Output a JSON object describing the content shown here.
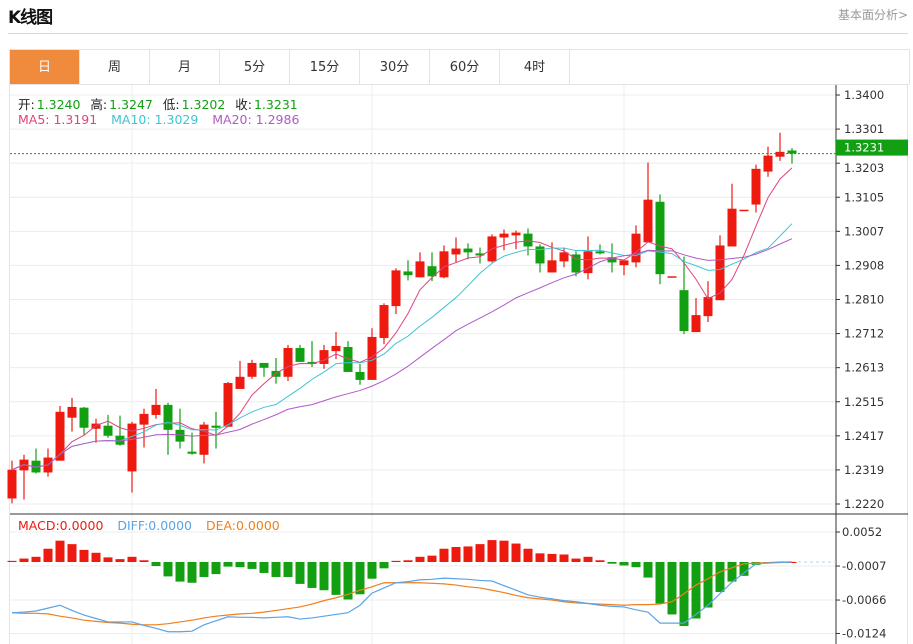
{
  "header": {
    "title": "K线图",
    "more_link": "基本面分析>"
  },
  "tabs": [
    {
      "label": "日",
      "active": true
    },
    {
      "label": "周"
    },
    {
      "label": "月"
    },
    {
      "label": "5分"
    },
    {
      "label": "15分"
    },
    {
      "label": "30分"
    },
    {
      "label": "60分"
    },
    {
      "label": "4时"
    }
  ],
  "ohlc_info": {
    "open_label": "开:",
    "open": "1.3240",
    "high_label": "高:",
    "high": "1.3247",
    "low_label": "低:",
    "low": "1.3202",
    "close_label": "收:",
    "close": "1.3231"
  },
  "ma_info": {
    "ma5": "MA5: 1.3191",
    "ma10": "MA10: 1.3029",
    "ma20": "MA20: 1.2986"
  },
  "macd_info": {
    "macd": "MACD:0.0000",
    "diff": "DIFF:0.0000",
    "dea": "DEA:0.0000"
  },
  "current_price": "1.3231",
  "colors": {
    "up": "#ee1a10",
    "down": "#12a012",
    "ma5": "#e0447f",
    "ma10": "#3ec5d3",
    "ma20": "#b05ac8",
    "diff": "#5ba4e6",
    "dea": "#f07f1d",
    "active_tab": "#f08a3c",
    "price_tag": "#12a012"
  },
  "chart_data": [
    {
      "type": "candlestick",
      "ylim": [
        1.222,
        1.34
      ],
      "y_ticks": [
        "1.3400",
        "1.3301",
        "1.3203",
        "1.3105",
        "1.3007",
        "1.2908",
        "1.2810",
        "1.2712",
        "1.2613",
        "1.2515",
        "1.2417",
        "1.2319",
        "1.2220"
      ],
      "grid": true,
      "candles": [
        [
          1.2236,
          1.2345,
          1.2222,
          1.2319
        ],
        [
          1.2317,
          1.2362,
          1.2233,
          1.2348
        ],
        [
          1.2345,
          1.238,
          1.2308,
          1.2311
        ],
        [
          1.2311,
          1.238,
          1.2299,
          1.2354
        ],
        [
          1.2345,
          1.2503,
          1.2345,
          1.2486
        ],
        [
          1.2469,
          1.2526,
          1.2429,
          1.25
        ],
        [
          1.2498,
          1.25,
          1.242,
          1.244
        ],
        [
          1.2437,
          1.2466,
          1.2397,
          1.2452
        ],
        [
          1.2446,
          1.2477,
          1.2411,
          1.2417
        ],
        [
          1.2417,
          1.2475,
          1.2388,
          1.2391
        ],
        [
          1.2314,
          1.2457,
          1.2253,
          1.2452
        ],
        [
          1.2449,
          1.2495,
          1.2383,
          1.248
        ],
        [
          1.2477,
          1.2552,
          1.2466,
          1.2506
        ],
        [
          1.2506,
          1.2512,
          1.2362,
          1.2434
        ],
        [
          1.2434,
          1.2495,
          1.238,
          1.24
        ],
        [
          1.2371,
          1.2426,
          1.2362,
          1.2365
        ],
        [
          1.2362,
          1.2457,
          1.2337,
          1.2449
        ],
        [
          1.2446,
          1.2486,
          1.238,
          1.244
        ],
        [
          1.2443,
          1.2572,
          1.2443,
          1.2569
        ],
        [
          1.2552,
          1.2633,
          1.2552,
          1.2587
        ],
        [
          1.2587,
          1.2636,
          1.2581,
          1.2627
        ],
        [
          1.2627,
          1.2627,
          1.2587,
          1.2613
        ],
        [
          1.2604,
          1.2641,
          1.2567,
          1.2587
        ],
        [
          1.2587,
          1.2679,
          1.2575,
          1.267
        ],
        [
          1.267,
          1.2679,
          1.263,
          1.263
        ],
        [
          1.263,
          1.269,
          1.2615,
          1.2624
        ],
        [
          1.2624,
          1.2679,
          1.261,
          1.2664
        ],
        [
          1.2661,
          1.2716,
          1.2638,
          1.2676
        ],
        [
          1.2673,
          1.269,
          1.2601,
          1.2601
        ],
        [
          1.2601,
          1.2624,
          1.2564,
          1.2578
        ],
        [
          1.2578,
          1.2727,
          1.2578,
          1.2702
        ],
        [
          1.2699,
          1.2799,
          1.2681,
          1.2794
        ],
        [
          1.2791,
          1.29,
          1.2768,
          1.2894
        ],
        [
          1.2891,
          1.2923,
          1.2865,
          1.288
        ],
        [
          1.2874,
          1.2946,
          1.2874,
          1.292
        ],
        [
          1.2906,
          1.2946,
          1.2863,
          1.2877
        ],
        [
          1.2874,
          1.2966,
          1.2871,
          1.2949
        ],
        [
          1.294,
          1.2989,
          1.2917,
          1.2957
        ],
        [
          1.2957,
          1.2972,
          1.2926,
          1.2946
        ],
        [
          1.2943,
          1.296,
          1.2914,
          1.2937
        ],
        [
          1.292,
          1.2998,
          1.2917,
          1.2992
        ],
        [
          1.2989,
          1.3012,
          1.2952,
          1.3
        ],
        [
          1.2995,
          1.3009,
          1.2955,
          1.3003
        ],
        [
          1.3,
          1.3015,
          1.2937,
          1.2963
        ],
        [
          1.2963,
          1.2969,
          1.2888,
          1.2914
        ],
        [
          1.2888,
          1.2975,
          1.2888,
          1.2923
        ],
        [
          1.292,
          1.296,
          1.2903,
          1.2946
        ],
        [
          1.294,
          1.2949,
          1.2877,
          1.2888
        ],
        [
          1.2886,
          1.2992,
          1.2868,
          1.2949
        ],
        [
          1.2949,
          1.2969,
          1.294,
          1.2943
        ],
        [
          1.2932,
          1.2972,
          1.2888,
          1.2917
        ],
        [
          1.2909,
          1.2923,
          1.288,
          1.2923
        ],
        [
          1.2917,
          1.3024,
          1.2903,
          1.3
        ],
        [
          1.2975,
          1.3205,
          1.2975,
          1.3098
        ],
        [
          1.3092,
          1.3113,
          1.2854,
          1.2883
        ],
        [
          1.2877,
          1.2877,
          1.2877,
          1.2877
        ],
        [
          1.2837,
          1.2934,
          1.271,
          1.2719
        ],
        [
          1.2716,
          1.2814,
          1.2716,
          1.2765
        ],
        [
          1.2762,
          1.2863,
          1.2745,
          1.2817
        ],
        [
          1.2808,
          1.2995,
          1.2808,
          1.2966
        ],
        [
          1.2963,
          1.3144,
          1.2963,
          1.3072
        ],
        [
          1.3069,
          1.3069,
          1.3069,
          1.3069
        ],
        [
          1.3084,
          1.3199,
          1.3061,
          1.3187
        ],
        [
          1.3179,
          1.3251,
          1.3164,
          1.3225
        ],
        [
          1.3222,
          1.3291,
          1.321,
          1.3236
        ],
        [
          1.324,
          1.3247,
          1.3202,
          1.3231
        ]
      ],
      "candle_format": [
        "open",
        "high",
        "low",
        "close"
      ],
      "overlays": [
        "MA5",
        "MA10",
        "MA20"
      ]
    },
    {
      "type": "bar+line",
      "ylim": [
        -0.013,
        0.0063
      ],
      "y_ticks": [
        "0.0052",
        "-0.0007",
        "-0.0066",
        "-0.0124"
      ],
      "macd": [
        0.0002,
        0.0006,
        0.0009,
        0.0023,
        0.0037,
        0.0031,
        0.0021,
        0.0016,
        0.0008,
        0.0005,
        0.0009,
        0.0003,
        -0.0007,
        -0.0025,
        -0.0034,
        -0.0036,
        -0.0026,
        -0.0021,
        -0.0008,
        -0.0009,
        -0.0012,
        -0.0019,
        -0.0026,
        -0.0026,
        -0.0038,
        -0.0045,
        -0.0049,
        -0.0057,
        -0.0065,
        -0.0056,
        -0.0029,
        -0.0011,
        0.0002,
        0.0003,
        0.0009,
        0.0011,
        0.0023,
        0.0026,
        0.0027,
        0.0031,
        0.0038,
        0.0037,
        0.0032,
        0.0023,
        0.0015,
        0.0014,
        0.0013,
        0.0006,
        0.0009,
        0.0003,
        -0.0003,
        -0.0006,
        -0.0009,
        -0.0027,
        -0.0072,
        -0.0091,
        -0.0111,
        -0.0098,
        -0.0079,
        -0.0052,
        -0.0034,
        -0.0024,
        -0.0005,
        -0.0001,
        0.0,
        0.0
      ],
      "diff": [
        -0.0088,
        -0.0087,
        -0.0085,
        -0.008,
        -0.0075,
        -0.0084,
        -0.0092,
        -0.0098,
        -0.0104,
        -0.0104,
        -0.0104,
        -0.011,
        -0.0115,
        -0.0121,
        -0.0121,
        -0.012,
        -0.0109,
        -0.0102,
        -0.0095,
        -0.0096,
        -0.0096,
        -0.0097,
        -0.0096,
        -0.0095,
        -0.0099,
        -0.0097,
        -0.0094,
        -0.0091,
        -0.0088,
        -0.0075,
        -0.0054,
        -0.0045,
        -0.0036,
        -0.0034,
        -0.0031,
        -0.003,
        -0.0028,
        -0.0029,
        -0.003,
        -0.0032,
        -0.0033,
        -0.0041,
        -0.0049,
        -0.0057,
        -0.0061,
        -0.0064,
        -0.0067,
        -0.0069,
        -0.0072,
        -0.0075,
        -0.0077,
        -0.0078,
        -0.0083,
        -0.0087,
        -0.0106,
        -0.0106,
        -0.0106,
        -0.0091,
        -0.0075,
        -0.0055,
        -0.0035,
        -0.0019,
        -0.0003,
        -0.0002,
        -0.0001,
        0.0
      ],
      "dea": [
        -0.0088,
        -0.0089,
        -0.0089,
        -0.009,
        -0.0094,
        -0.0097,
        -0.0101,
        -0.0103,
        -0.0105,
        -0.0106,
        -0.0108,
        -0.0109,
        -0.0109,
        -0.0107,
        -0.0104,
        -0.0101,
        -0.0097,
        -0.0094,
        -0.0092,
        -0.009,
        -0.0089,
        -0.0087,
        -0.0084,
        -0.0081,
        -0.0078,
        -0.0073,
        -0.0067,
        -0.0062,
        -0.0056,
        -0.0049,
        -0.0043,
        -0.0036,
        -0.0036,
        -0.0036,
        -0.0036,
        -0.0037,
        -0.0038,
        -0.004,
        -0.0043,
        -0.0045,
        -0.0049,
        -0.0053,
        -0.0058,
        -0.0062,
        -0.0064,
        -0.0066,
        -0.0069,
        -0.0071,
        -0.0072,
        -0.0073,
        -0.0074,
        -0.0075,
        -0.0074,
        -0.0074,
        -0.0073,
        -0.0069,
        -0.0055,
        -0.004,
        -0.0029,
        -0.0017,
        -0.001,
        -0.0003,
        -0.0002,
        -0.0001,
        0.0,
        0.0
      ]
    }
  ]
}
